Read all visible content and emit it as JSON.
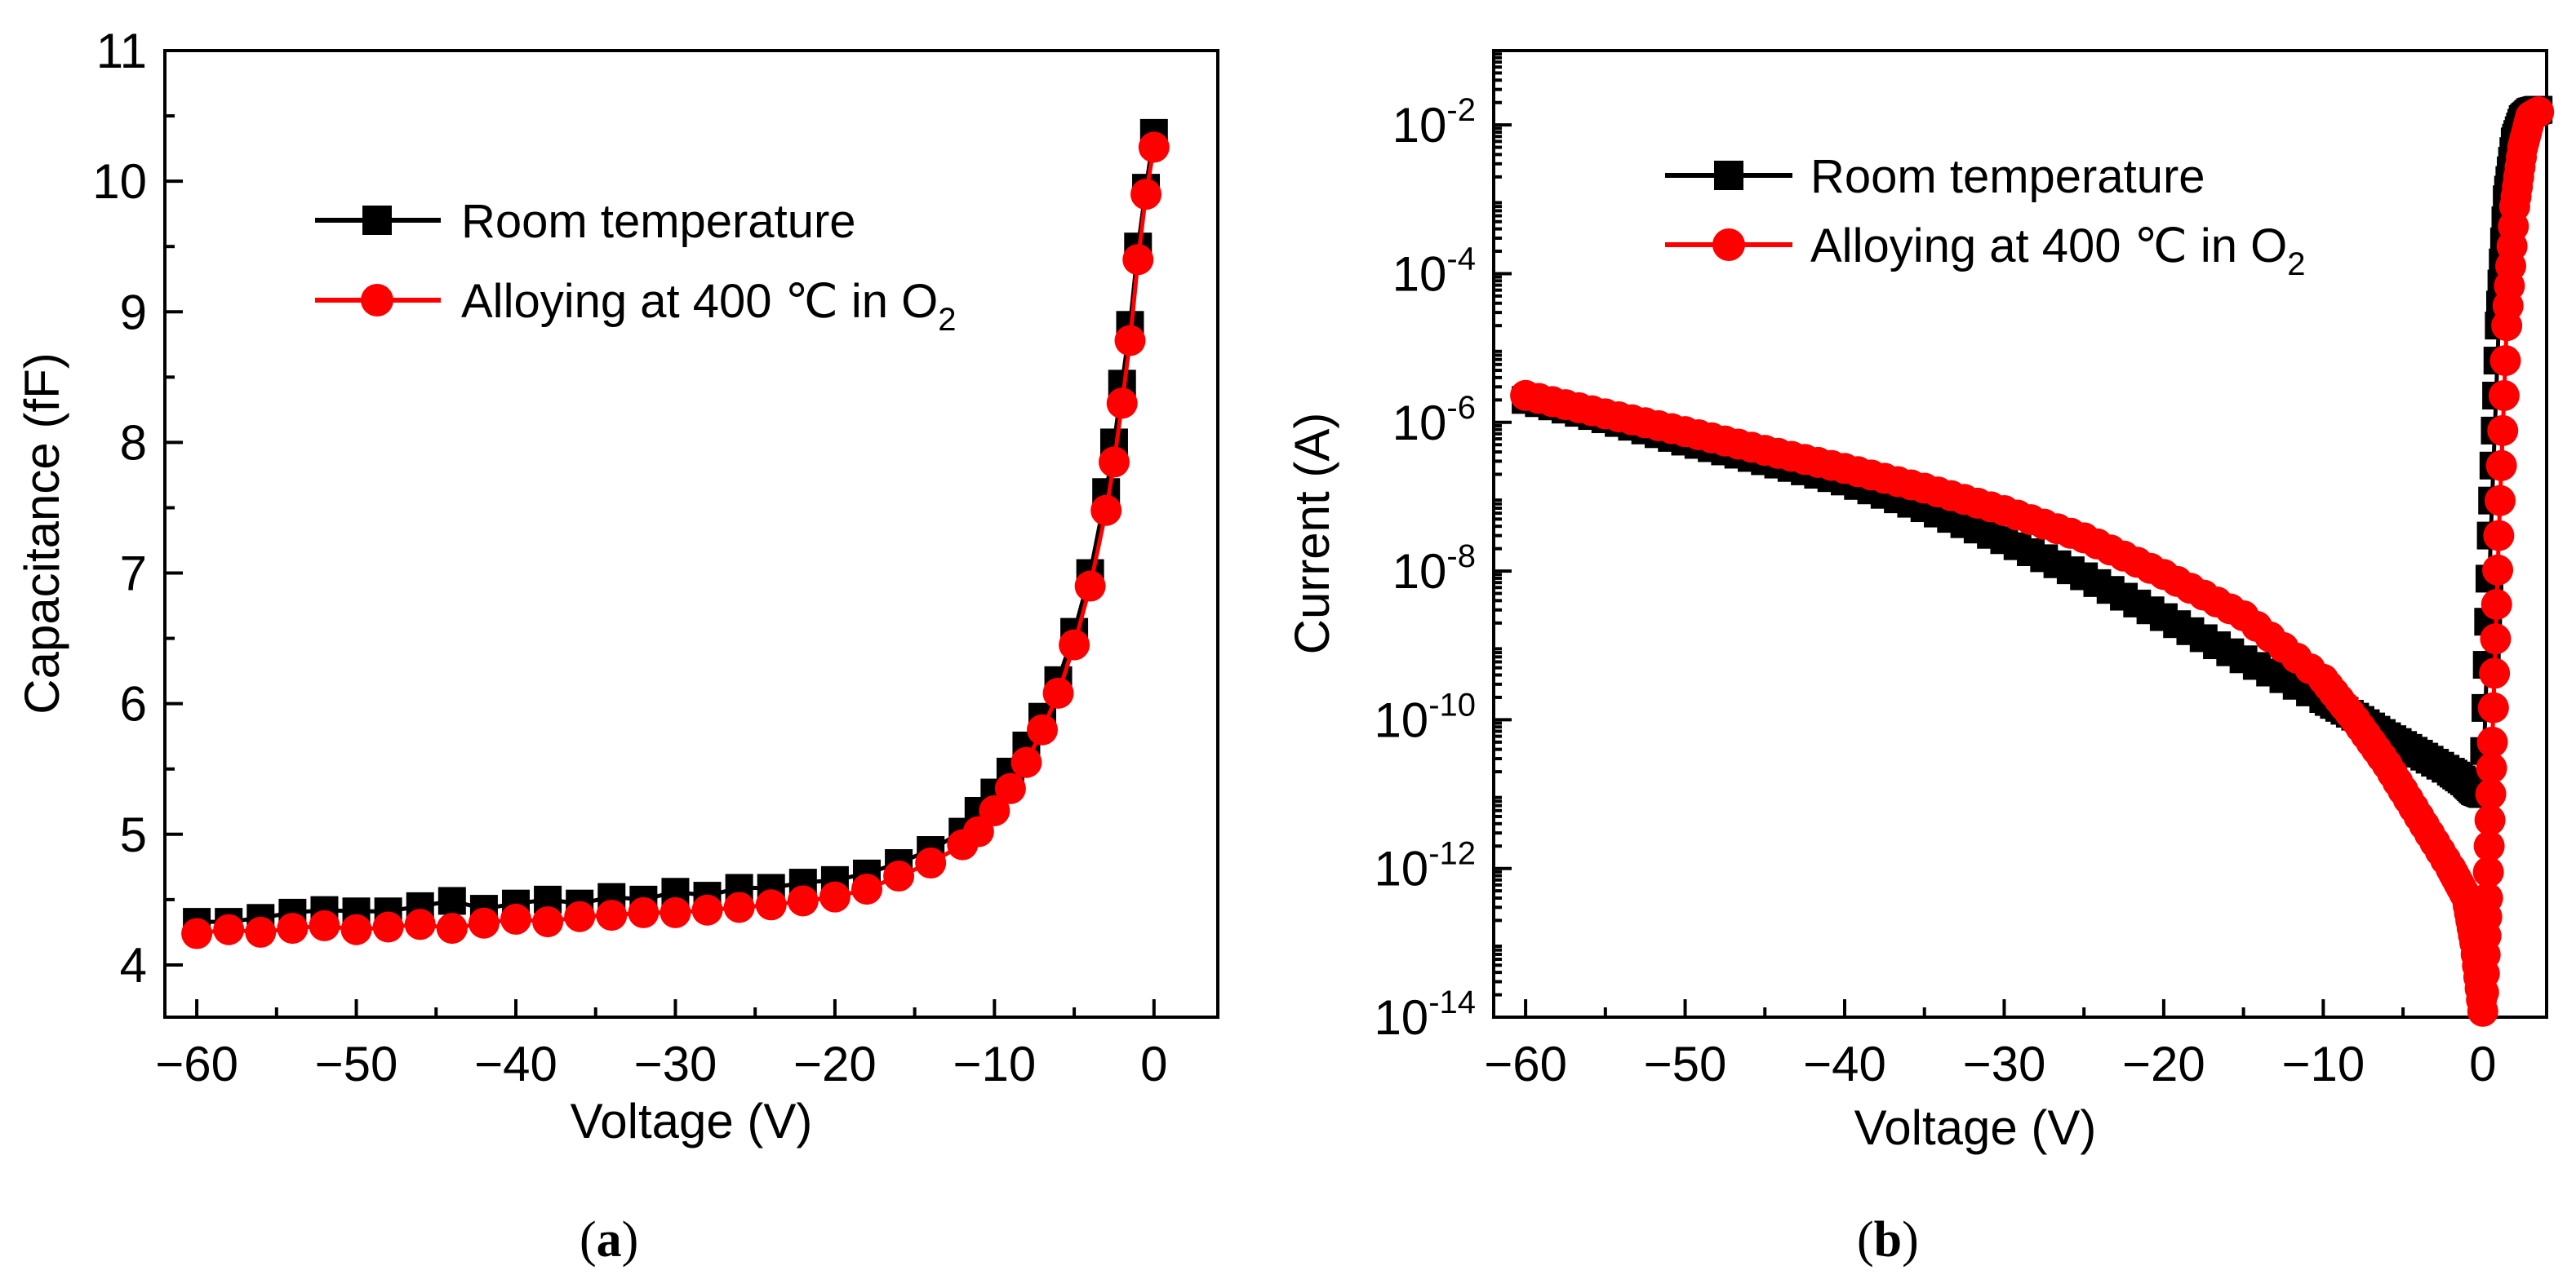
{
  "chart_data": [
    {
      "type": "scatter",
      "panel_label": "a",
      "xlabel": "Voltage (V)",
      "ylabel": "Capacitance (fF)",
      "xlim": [
        -62,
        4
      ],
      "ylim": [
        3.6,
        11
      ],
      "xticks": [
        -60,
        -50,
        -40,
        -30,
        -20,
        -10,
        0
      ],
      "xtick_labels": [
        "−60",
        "−50",
        "−40",
        "−30",
        "−20",
        "−10",
        "0"
      ],
      "yticks": [
        4,
        5,
        6,
        7,
        8,
        9,
        10,
        11
      ],
      "ytick_labels": [
        "4",
        "5",
        "6",
        "7",
        "8",
        "9",
        "10",
        "11"
      ],
      "yscale": "linear",
      "legend_position": "upper-left",
      "series": [
        {
          "name": "Room temperature",
          "color": "#000000",
          "marker": "square",
          "x": [
            -60,
            -58,
            -56,
            -54,
            -52,
            -50,
            -48,
            -46,
            -44,
            -42,
            -40,
            -38,
            -36,
            -34,
            -32,
            -30,
            -28,
            -26,
            -24,
            -22,
            -20,
            -18,
            -16,
            -14,
            -12,
            -11,
            -10,
            -9,
            -8,
            -7,
            -6,
            -5,
            -4,
            -3,
            -2.5,
            -2,
            -1.5,
            -1,
            -0.5,
            0
          ],
          "values": [
            4.33,
            4.33,
            4.36,
            4.4,
            4.42,
            4.41,
            4.41,
            4.45,
            4.49,
            4.43,
            4.47,
            4.5,
            4.47,
            4.52,
            4.5,
            4.56,
            4.53,
            4.59,
            4.59,
            4.63,
            4.65,
            4.7,
            4.78,
            4.88,
            5.02,
            5.18,
            5.32,
            5.48,
            5.68,
            5.9,
            6.18,
            6.55,
            7.0,
            7.62,
            8.0,
            8.45,
            8.9,
            9.5,
            9.95,
            10.37
          ]
        },
        {
          "name": "Alloying at 400 ℃ in O",
          "name_sub": "2",
          "color": "#ff0000",
          "marker": "circle",
          "x": [
            -60,
            -58,
            -56,
            -54,
            -52,
            -50,
            -48,
            -46,
            -44,
            -42,
            -40,
            -38,
            -36,
            -34,
            -32,
            -30,
            -28,
            -26,
            -24,
            -22,
            -20,
            -18,
            -16,
            -14,
            -12,
            -11,
            -10,
            -9,
            -8,
            -7,
            -6,
            -5,
            -4,
            -3,
            -2.5,
            -2,
            -1.5,
            -1,
            -0.5,
            0
          ],
          "values": [
            4.24,
            4.27,
            4.25,
            4.28,
            4.3,
            4.27,
            4.29,
            4.31,
            4.28,
            4.32,
            4.35,
            4.33,
            4.37,
            4.38,
            4.4,
            4.4,
            4.42,
            4.44,
            4.46,
            4.49,
            4.52,
            4.58,
            4.68,
            4.78,
            4.92,
            5.02,
            5.18,
            5.35,
            5.55,
            5.8,
            6.08,
            6.45,
            6.9,
            7.48,
            7.85,
            8.3,
            8.78,
            9.4,
            9.9,
            10.26
          ]
        }
      ]
    },
    {
      "type": "scatter",
      "panel_label": "b",
      "xlabel": "Voltage (V)",
      "ylabel": "Current (A)",
      "xlim": [
        -62,
        4
      ],
      "ylim_log10": [
        -14,
        -1
      ],
      "xticks": [
        -60,
        -50,
        -40,
        -30,
        -20,
        -10,
        0
      ],
      "xtick_labels": [
        "−60",
        "−50",
        "−40",
        "−30",
        "−20",
        "−10",
        "0"
      ],
      "yticks_log10": [
        -14,
        -12,
        -10,
        -8,
        -6,
        -4,
        -2
      ],
      "ytick_labels": [
        {
          "base": "10",
          "exp": "-14"
        },
        {
          "base": "10",
          "exp": "-12"
        },
        {
          "base": "10",
          "exp": "-10"
        },
        {
          "base": "10",
          "exp": "-8"
        },
        {
          "base": "10",
          "exp": "-6"
        },
        {
          "base": "10",
          "exp": "-4"
        },
        {
          "base": "10",
          "exp": "-2"
        }
      ],
      "yscale": "log",
      "legend_position": "upper-center",
      "series": [
        {
          "name": "Room temperature",
          "color": "#000000",
          "marker": "square",
          "x": [
            -60,
            -55,
            -50,
            -45,
            -40,
            -35,
            -30,
            -25,
            -20,
            -15,
            -10,
            -8,
            -6,
            -4,
            -2,
            -1,
            -0.5,
            0,
            0.5,
            1,
            1.5,
            2,
            2.5,
            3,
            3.5
          ],
          "values": [
            2e-06,
            1.1e-06,
            5.5e-07,
            3e-07,
            1.6e-07,
            7e-08,
            2.6e-08,
            8.5e-09,
            2.4e-09,
            6.5e-10,
            1.9e-10,
            1.1e-10,
            6e-11,
            3.5e-11,
            2e-11,
            1.4e-11,
            1.1e-11,
            1e-11,
            3e-08,
            2e-05,
            0.001,
            0.006,
            0.012,
            0.015,
            0.016
          ]
        },
        {
          "name": "Alloying at 400 ℃ in O",
          "name_sub": "2",
          "color": "#ff0000",
          "marker": "circle",
          "x": [
            -60,
            -55,
            -50,
            -45,
            -40,
            -35,
            -30,
            -25,
            -20,
            -15,
            -10,
            -8,
            -6,
            -4,
            -2,
            -1,
            -0.5,
            0,
            0.3,
            0.6,
            1,
            1.5,
            2,
            2.5,
            3,
            3.5
          ],
          "values": [
            2.3e-06,
            1.3e-06,
            7.5e-07,
            4.2e-07,
            2.4e-07,
            1.3e-07,
            6.5e-08,
            2.8e-08,
            9e-09,
            2.5e-09,
            3.5e-10,
            1e-10,
            2.5e-11,
            5e-12,
            1e-12,
            4e-13,
            1e-13,
            1.2e-14,
            4e-13,
            5e-11,
            3e-08,
            2e-05,
            0.0008,
            0.005,
            0.013,
            0.015
          ]
        }
      ]
    }
  ]
}
